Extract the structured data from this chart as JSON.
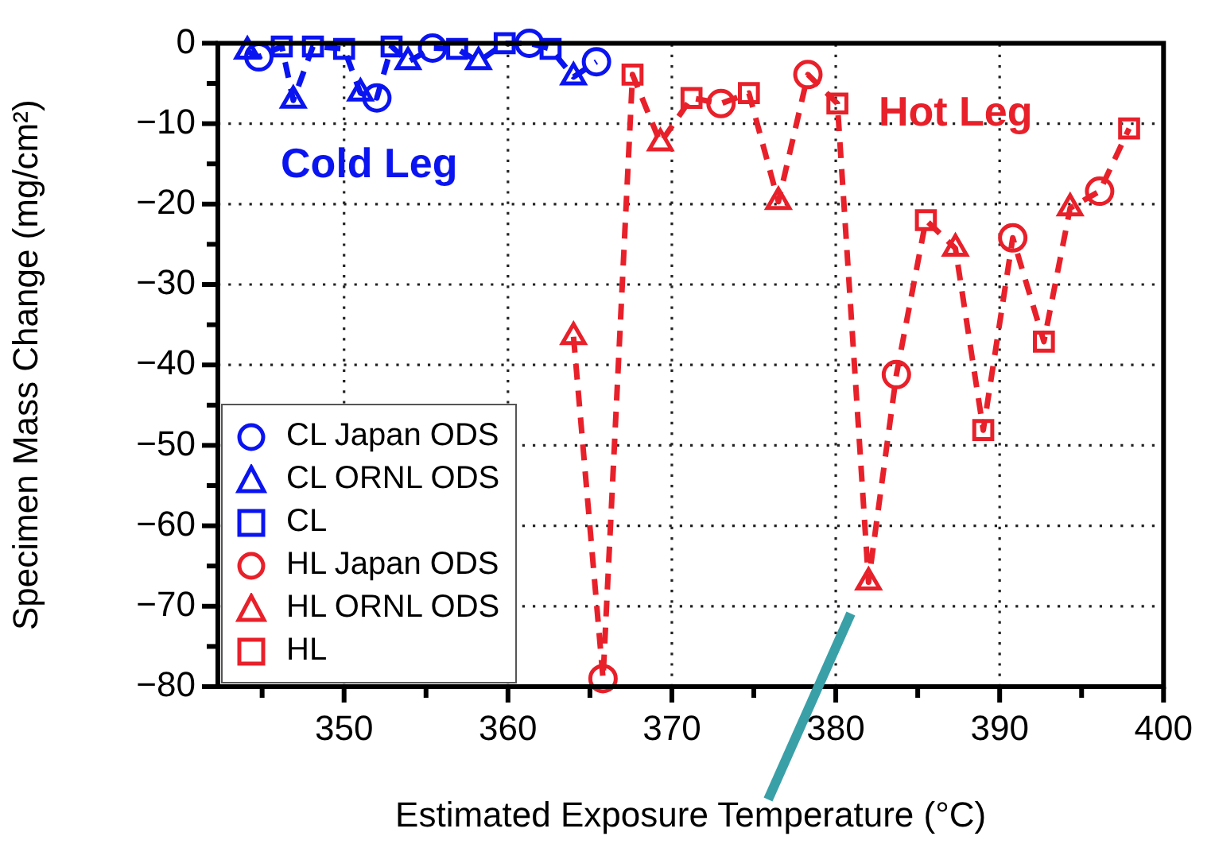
{
  "chart_data": {
    "type": "scatter",
    "xlabel": "Estimated Exposure Temperature (°C)",
    "ylabel": "Specimen Mass Change (mg/cm²)",
    "xlim": [
      342.3,
      400
    ],
    "ylim": [
      -80,
      0
    ],
    "xticks": [
      {
        "value": 345,
        "label": null
      },
      350,
      {
        "value": 355,
        "label": null
      },
      360,
      {
        "value": 365,
        "label": null
      },
      370,
      {
        "value": 375,
        "label": null
      },
      380,
      {
        "value": 385,
        "label": null
      },
      390,
      {
        "value": 395,
        "label": null
      },
      400
    ],
    "yticks": [
      -80,
      {
        "value": -75,
        "label": null
      },
      -70,
      {
        "value": -65,
        "label": null
      },
      -60,
      {
        "value": -55,
        "label": null
      },
      -50,
      {
        "value": -45,
        "label": null
      },
      -40,
      {
        "value": -35,
        "label": null
      },
      -30,
      {
        "value": -25,
        "label": null
      },
      -20,
      {
        "value": -15,
        "label": null
      },
      -10,
      {
        "value": -5,
        "label": null
      },
      0
    ],
    "grid": true,
    "legend": "bottom left",
    "annotations": [
      "Cold Leg",
      "Hot Leg"
    ],
    "series": [
      {
        "name": "CL Japan ODS",
        "color": "#0a14f0",
        "marker": "circle",
        "x": [
          344.8,
          352.0,
          355.4,
          361.3,
          365.4
        ],
        "values": [
          -1.7,
          -6.8,
          -0.6,
          0,
          -2.3
        ]
      },
      {
        "name": "CL ORNL ODS",
        "color": "#0a14f0",
        "marker": "triangle",
        "x": [
          344.1,
          346.9,
          351.0,
          353.9,
          358.2,
          364.0
        ],
        "values": [
          -1.0,
          -7.1,
          -6.2,
          -2.3,
          -2.3,
          -4.2
        ]
      },
      {
        "name": "CL",
        "color": "#0a14f0",
        "marker": "square",
        "x": [
          346.2,
          348.1,
          350.0,
          352.9,
          356.9,
          359.8,
          362.6
        ],
        "values": [
          -0.4,
          -0.4,
          -0.7,
          -0.4,
          -0.7,
          0,
          -0.7
        ]
      },
      {
        "name": "HL Japan ODS",
        "color": "#e8202a",
        "marker": "circle",
        "x": [
          365.8,
          373.0,
          378.3,
          383.7,
          390.8,
          396.1
        ],
        "values": [
          -79,
          -7.5,
          -3.9,
          -41.2,
          -24.2,
          -18.4
        ]
      },
      {
        "name": "HL ORNL ODS",
        "color": "#e8202a",
        "marker": "triangle",
        "x": [
          364.0,
          369.3,
          376.5,
          382.0,
          387.3,
          394.3
        ],
        "values": [
          -36.5,
          -12.4,
          -19.7,
          -67,
          -25.5,
          -20.5
        ]
      },
      {
        "name": "HL",
        "color": "#e8202a",
        "marker": "square",
        "x": [
          367.6,
          371.2,
          374.7,
          380.1,
          385.5,
          389.0,
          392.7,
          397.9
        ],
        "values": [
          -3.9,
          -6.8,
          -6.2,
          -7.5,
          -22,
          -48.1,
          -37.1,
          -10.6
        ]
      },
      {
        "type": "line",
        "color": "#0a14f0",
        "marker": "none",
        "line_style": "dashed",
        "x": [
          344.1,
          344.8,
          346.2,
          346.9,
          348.1,
          350.0,
          351.0,
          352.0,
          352.9,
          353.9,
          355.4,
          356.9,
          358.2,
          359.8,
          361.3,
          362.6,
          364.0,
          365.4
        ],
        "values": [
          -1.0,
          -1.7,
          -0.4,
          -7.1,
          -0.4,
          -0.7,
          -6.2,
          -6.8,
          -0.4,
          -2.3,
          -0.6,
          -0.7,
          -2.3,
          0,
          0,
          -0.7,
          -4.2,
          -2.3
        ]
      },
      {
        "type": "line",
        "color": "#e8202a",
        "marker": "none",
        "line_style": "dashed",
        "x": [
          364.0,
          365.8,
          367.6,
          369.3,
          371.2,
          373.0,
          374.7,
          376.5,
          378.3,
          380.1,
          382.0,
          383.7,
          385.5,
          387.3,
          389.0,
          390.8,
          392.7,
          394.3,
          396.1,
          397.9
        ],
        "values": [
          -36.5,
          -79,
          -3.9,
          -12.4,
          -6.8,
          -7.5,
          -6.2,
          -19.7,
          -3.9,
          -7.5,
          -67,
          -41.2,
          -22,
          -25.5,
          -48.1,
          -24.2,
          -37.1,
          -20.5,
          -18.4,
          -10.6
        ]
      }
    ]
  }
}
